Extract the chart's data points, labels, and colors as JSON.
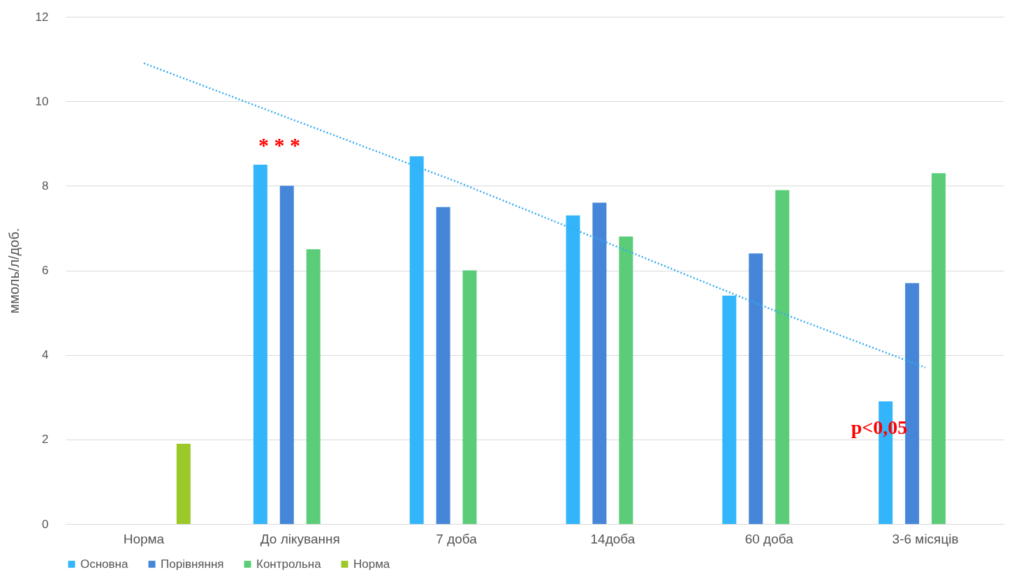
{
  "chart_data": {
    "type": "bar",
    "ylabel": "ммоль/л/доб.",
    "categories": [
      "Норма",
      "До лікування",
      "7 доба",
      "14доба",
      "60 доба",
      "3-6 місяців"
    ],
    "series": [
      {
        "name": "Основна",
        "color": "#33b5fb",
        "values": [
          null,
          8.5,
          8.7,
          7.3,
          5.4,
          2.9
        ]
      },
      {
        "name": "Порівняння",
        "color": "#4686d8",
        "values": [
          null,
          8.0,
          7.5,
          7.6,
          6.4,
          5.7
        ]
      },
      {
        "name": "Контрольна",
        "color": "#5bcd79",
        "values": [
          null,
          6.5,
          6.0,
          6.8,
          7.9,
          8.3
        ]
      },
      {
        "name": "Норма",
        "color": "#9cc92a",
        "values": [
          1.9,
          null,
          null,
          null,
          null,
          null
        ]
      },
      {
        "type": "line",
        "color": "#33aaf0",
        "line_style": "dotted",
        "values": [
          10.9,
          9.5,
          8.1,
          6.6,
          5.1,
          3.7
        ]
      }
    ],
    "ylim": [
      0,
      12
    ],
    "yticks": [
      0,
      2,
      4,
      6,
      8,
      10,
      12
    ],
    "grid": "y",
    "legend": "bottom",
    "annotations": [
      "* * *",
      "p<0,05"
    ]
  }
}
